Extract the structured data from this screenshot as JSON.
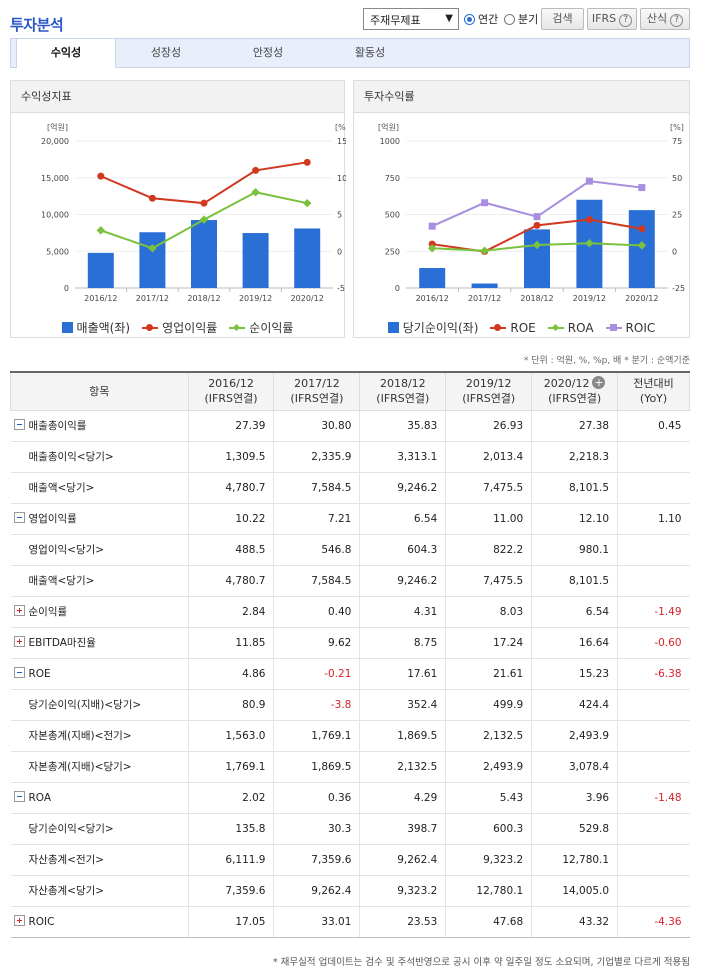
{
  "header": {
    "title": "투자분석",
    "select_value": "주재무제표",
    "radio_annual": "연간",
    "radio_quarter": "분기",
    "search_label": "검색",
    "ifrs_label": "IFRS",
    "formula_label": "산식"
  },
  "tabs": [
    "수익성",
    "성장성",
    "안정성",
    "활동성"
  ],
  "panels": {
    "left_title": "수익성지표",
    "right_title": "투자수익률"
  },
  "chart_data": [
    {
      "type": "bar",
      "title": "수익성지표",
      "categories": [
        "2016/12",
        "2017/12",
        "2018/12",
        "2019/12",
        "2020/12"
      ],
      "y_left_unit": "[억원]",
      "y_right_unit": "[%]",
      "y_left_ticks": [
        "20,000",
        "15,000",
        "10,000",
        "5,000",
        "0"
      ],
      "y_right_ticks": [
        "15",
        "10",
        "5",
        "0",
        "-5"
      ],
      "y_left_range": [
        0,
        20000
      ],
      "y_right_range": [
        -5,
        15
      ],
      "series": [
        {
          "name": "매출액(좌)",
          "kind": "bar",
          "axis": "left",
          "color": "#2a6fd6",
          "values": [
            4780.7,
            7584.5,
            9246.2,
            7475.5,
            8101.5
          ]
        },
        {
          "name": "영업이익률",
          "kind": "line",
          "marker": "circle",
          "axis": "right",
          "color": "#d0391f",
          "values": [
            10.22,
            7.21,
            6.54,
            11.0,
            12.1
          ]
        },
        {
          "name": "순이익률",
          "kind": "line",
          "marker": "diamond",
          "axis": "right",
          "color": "#7ac13d",
          "values": [
            2.84,
            0.4,
            4.31,
            8.03,
            6.54
          ]
        }
      ]
    },
    {
      "type": "bar",
      "title": "투자수익률",
      "categories": [
        "2016/12",
        "2017/12",
        "2018/12",
        "2019/12",
        "2020/12"
      ],
      "y_left_unit": "[억원]",
      "y_right_unit": "[%]",
      "y_left_ticks": [
        "1000",
        "750",
        "500",
        "250",
        "0"
      ],
      "y_right_ticks": [
        "75",
        "50",
        "25",
        "0",
        "-25"
      ],
      "y_left_range": [
        0,
        1000
      ],
      "y_right_range": [
        -25,
        75
      ],
      "series": [
        {
          "name": "당기순이익(좌)",
          "kind": "bar",
          "axis": "left",
          "color": "#2a6fd6",
          "values": [
            135.8,
            30.3,
            398.7,
            600.3,
            529.8
          ]
        },
        {
          "name": "ROE",
          "kind": "line",
          "marker": "circle",
          "axis": "right",
          "color": "#d0391f",
          "values": [
            4.86,
            -0.21,
            17.61,
            21.61,
            15.23
          ]
        },
        {
          "name": "ROA",
          "kind": "line",
          "marker": "diamond",
          "axis": "right",
          "color": "#7ac13d",
          "values": [
            2.02,
            0.36,
            4.29,
            5.43,
            3.96
          ]
        },
        {
          "name": "ROIC",
          "kind": "line",
          "marker": "square",
          "axis": "right",
          "color": "#a78ee0",
          "values": [
            17.05,
            33.01,
            23.53,
            47.68,
            43.32
          ]
        }
      ]
    }
  ],
  "unit_note": "* 단위 : 억원, %, %p, 배   * 분기 : 순액기준",
  "table": {
    "header_item": "항목",
    "columns": [
      {
        "period": "2016/12",
        "basis": "(IFRS연결)"
      },
      {
        "period": "2017/12",
        "basis": "(IFRS연결)"
      },
      {
        "period": "2018/12",
        "basis": "(IFRS연결)"
      },
      {
        "period": "2019/12",
        "basis": "(IFRS연결)"
      },
      {
        "period": "2020/12",
        "basis": "(IFRS연결)"
      }
    ],
    "yoy_line1": "전년대비",
    "yoy_line2": "(YoY)",
    "rows": [
      {
        "label": "매출총이익률",
        "level": "main",
        "toggle": "minus",
        "values": [
          "27.39",
          "30.80",
          "35.83",
          "26.93",
          "27.38"
        ],
        "yoy": "0.45"
      },
      {
        "label": "매출총이익<당기>",
        "level": "sub",
        "values": [
          "1,309.5",
          "2,335.9",
          "3,313.1",
          "2,013.4",
          "2,218.3"
        ],
        "yoy": ""
      },
      {
        "label": "매출액<당기>",
        "level": "sub",
        "values": [
          "4,780.7",
          "7,584.5",
          "9,246.2",
          "7,475.5",
          "8,101.5"
        ],
        "yoy": ""
      },
      {
        "label": "영업이익률",
        "level": "main",
        "toggle": "minus",
        "values": [
          "10.22",
          "7.21",
          "6.54",
          "11.00",
          "12.10"
        ],
        "yoy": "1.10"
      },
      {
        "label": "영업이익<당기>",
        "level": "sub",
        "values": [
          "488.5",
          "546.8",
          "604.3",
          "822.2",
          "980.1"
        ],
        "yoy": ""
      },
      {
        "label": "매출액<당기>",
        "level": "sub",
        "values": [
          "4,780.7",
          "7,584.5",
          "9,246.2",
          "7,475.5",
          "8,101.5"
        ],
        "yoy": ""
      },
      {
        "label": "순이익률",
        "level": "main",
        "toggle": "plus",
        "values": [
          "2.84",
          "0.40",
          "4.31",
          "8.03",
          "6.54"
        ],
        "yoy": "-1.49"
      },
      {
        "label": "EBITDA마진율",
        "level": "main",
        "toggle": "plus",
        "values": [
          "11.85",
          "9.62",
          "8.75",
          "17.24",
          "16.64"
        ],
        "yoy": "-0.60"
      },
      {
        "label": "ROE",
        "level": "main",
        "toggle": "minus",
        "values": [
          "4.86",
          "-0.21",
          "17.61",
          "21.61",
          "15.23"
        ],
        "yoy": "-6.38"
      },
      {
        "label": "당기순이익(지배)<당기>",
        "level": "sub",
        "values": [
          "80.9",
          "-3.8",
          "352.4",
          "499.9",
          "424.4"
        ],
        "yoy": ""
      },
      {
        "label": "자본총계(지배)<전기>",
        "level": "sub",
        "values": [
          "1,563.0",
          "1,769.1",
          "1,869.5",
          "2,132.5",
          "2,493.9"
        ],
        "yoy": ""
      },
      {
        "label": "자본총계(지배)<당기>",
        "level": "sub",
        "values": [
          "1,769.1",
          "1,869.5",
          "2,132.5",
          "2,493.9",
          "3,078.4"
        ],
        "yoy": ""
      },
      {
        "label": "ROA",
        "level": "main",
        "toggle": "minus",
        "values": [
          "2.02",
          "0.36",
          "4.29",
          "5.43",
          "3.96"
        ],
        "yoy": "-1.48"
      },
      {
        "label": "당기순이익<당기>",
        "level": "sub",
        "values": [
          "135.8",
          "30.3",
          "398.7",
          "600.3",
          "529.8"
        ],
        "yoy": ""
      },
      {
        "label": "자산총계<전기>",
        "level": "sub",
        "values": [
          "6,111.9",
          "7,359.6",
          "9,262.4",
          "9,323.2",
          "12,780.1"
        ],
        "yoy": ""
      },
      {
        "label": "자산총계<당기>",
        "level": "sub",
        "values": [
          "7,359.6",
          "9,262.4",
          "9,323.2",
          "12,780.1",
          "14,005.0"
        ],
        "yoy": ""
      },
      {
        "label": "ROIC",
        "level": "main",
        "toggle": "plus",
        "values": [
          "17.05",
          "33.01",
          "23.53",
          "47.68",
          "43.32"
        ],
        "yoy": "-4.36"
      }
    ]
  },
  "footnote": "* 재무실적 업데이트는 검수 및 주석반영으로 공시 이후 약 일주일 정도 소요되며, 기업별로 다르게 적용됨"
}
